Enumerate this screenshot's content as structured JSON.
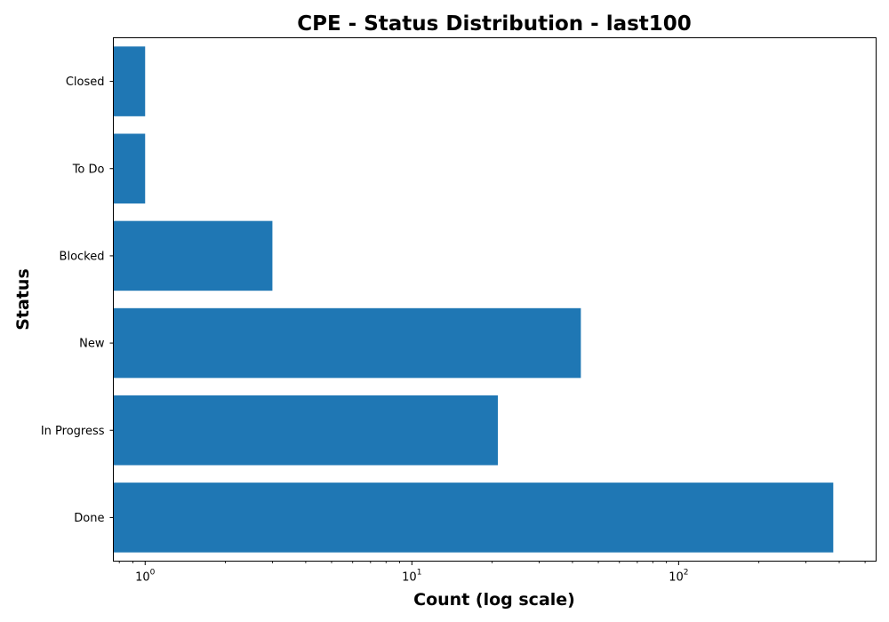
{
  "chart_data": {
    "type": "bar",
    "orientation": "horizontal",
    "title": "CPE - Status Distribution - last100",
    "xlabel": "Count (log scale)",
    "ylabel": "Status",
    "x_scale": "log",
    "xlim": [
      0.76,
      550
    ],
    "categories": [
      "Done",
      "In Progress",
      "New",
      "Blocked",
      "To Do",
      "Closed"
    ],
    "values": [
      380,
      21,
      43,
      3,
      1,
      1
    ],
    "x_major_ticks": [
      1,
      10,
      100
    ],
    "x_major_tick_labels": [
      {
        "base": "10",
        "exp": "0"
      },
      {
        "base": "10",
        "exp": "1"
      },
      {
        "base": "10",
        "exp": "2"
      }
    ],
    "bar_color": "#1f77b4",
    "grid": false,
    "legend": "none"
  }
}
